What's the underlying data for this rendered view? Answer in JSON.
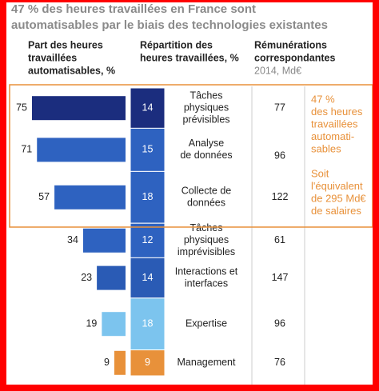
{
  "chart_data": {
    "type": "bar",
    "title": [
      "47 % des heures travaillées en France sont",
      "automatisables par le biais des technologies existantes"
    ],
    "headers": {
      "share": [
        "Part des heures",
        "travaillées",
        "automatisables, %"
      ],
      "distribution": [
        "Répartition des",
        "heures travaillées, %"
      ],
      "remuneration": [
        "Rémunérations",
        "correspondantes"
      ],
      "remuneration_sub": "2014, Md€"
    },
    "categories": [
      [
        "Tâches",
        "physiques",
        "prévisibles"
      ],
      [
        "Analyse",
        "de données"
      ],
      [
        "Collecte de",
        "données"
      ],
      [
        "Tâches",
        "physiques",
        "imprévisibles"
      ],
      [
        "Interactions et",
        "interfaces"
      ],
      [
        "Expertise"
      ],
      [
        "Management"
      ]
    ],
    "values": [
      75,
      71,
      57,
      34,
      23,
      19,
      9
    ],
    "distribution": [
      14,
      15,
      18,
      12,
      14,
      18,
      9
    ],
    "remuneration": [
      77,
      96,
      122,
      61,
      147,
      96,
      76
    ],
    "colors": [
      "#1b2d7e",
      "#2e62c0",
      "#2e62c0",
      "#2e62c0",
      "#2a5bb5",
      "#7cc4ee",
      "#e8913a"
    ],
    "annotation": [
      "47 %",
      "des heures",
      "travaillées",
      "automati-",
      "sables",
      "",
      "Soit",
      "l'équivalent",
      "de 295 Md€",
      "de salaires"
    ]
  }
}
